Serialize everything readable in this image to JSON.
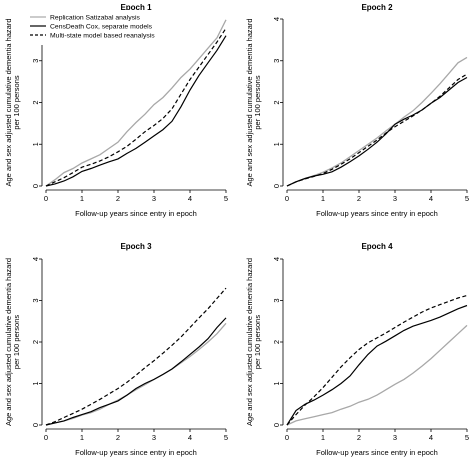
{
  "chart_data": [
    {
      "type": "line",
      "title": "Epoch 1",
      "xlabel": "Follow-up years since entry in epoch",
      "ylabel": [
        "Age and sex adjusted cumulative dementia hazard",
        "per 100 persons"
      ],
      "xlim": [
        0,
        5
      ],
      "ylim": [
        0,
        4
      ],
      "xticks": [
        0,
        1,
        2,
        3,
        4,
        5
      ],
      "yticks": [
        0,
        1,
        2,
        3,
        4
      ],
      "grid": false,
      "legend": "top-left",
      "series": [
        {
          "name": "Replication Satizabal analysis",
          "color": "#a8a8a8",
          "dash": "solid",
          "x": [
            0,
            0.25,
            0.5,
            0.75,
            1.0,
            1.25,
            1.5,
            1.75,
            2.0,
            2.25,
            2.5,
            2.75,
            3.0,
            3.25,
            3.5,
            3.75,
            4.0,
            4.25,
            4.5,
            4.75,
            5.0
          ],
          "y": [
            0,
            0.15,
            0.32,
            0.42,
            0.55,
            0.65,
            0.75,
            0.9,
            1.05,
            1.3,
            1.52,
            1.72,
            1.95,
            2.12,
            2.35,
            2.6,
            2.8,
            3.05,
            3.3,
            3.55,
            3.98
          ]
        },
        {
          "name": "CensDeath Cox, separate models",
          "color": "#000000",
          "dash": "solid",
          "x": [
            0,
            0.25,
            0.5,
            0.75,
            1.0,
            1.25,
            1.5,
            1.75,
            2.0,
            2.25,
            2.5,
            2.75,
            3.0,
            3.25,
            3.5,
            3.75,
            4.0,
            4.25,
            4.5,
            4.75,
            5.0
          ],
          "y": [
            0,
            0.05,
            0.12,
            0.22,
            0.35,
            0.42,
            0.5,
            0.58,
            0.65,
            0.78,
            0.9,
            1.05,
            1.2,
            1.35,
            1.55,
            1.9,
            2.3,
            2.65,
            2.95,
            3.25,
            3.6
          ]
        },
        {
          "name": "Multi-state model based reanalysis",
          "color": "#000000",
          "dash": "dashed",
          "x": [
            0,
            0.25,
            0.5,
            0.75,
            1.0,
            1.25,
            1.5,
            1.75,
            2.0,
            2.25,
            2.5,
            2.75,
            3.0,
            3.25,
            3.5,
            3.75,
            4.0,
            4.25,
            4.5,
            4.75,
            5.0
          ],
          "y": [
            0,
            0.1,
            0.2,
            0.32,
            0.45,
            0.52,
            0.6,
            0.7,
            0.82,
            0.95,
            1.12,
            1.3,
            1.45,
            1.62,
            1.85,
            2.2,
            2.55,
            2.85,
            3.15,
            3.45,
            3.78
          ]
        }
      ]
    },
    {
      "type": "line",
      "title": "Epoch 2",
      "xlabel": "Follow-up years since entry in epoch",
      "ylabel": [
        "Age and sex adjusted cumulative dementia hazard",
        "per 100 persons"
      ],
      "xlim": [
        0,
        5
      ],
      "ylim": [
        0,
        4
      ],
      "xticks": [
        0,
        1,
        2,
        3,
        4,
        5
      ],
      "yticks": [
        0,
        1,
        2,
        3,
        4
      ],
      "grid": false,
      "series": [
        {
          "name": "Replication Satizabal analysis",
          "color": "#a8a8a8",
          "dash": "solid",
          "x": [
            0,
            0.25,
            0.5,
            0.75,
            1.0,
            1.25,
            1.5,
            1.75,
            2.0,
            2.25,
            2.5,
            2.75,
            3.0,
            3.25,
            3.5,
            3.75,
            4.0,
            4.25,
            4.5,
            4.75,
            5.0
          ],
          "y": [
            0,
            0.1,
            0.18,
            0.25,
            0.33,
            0.43,
            0.55,
            0.7,
            0.85,
            1.0,
            1.15,
            1.32,
            1.48,
            1.65,
            1.8,
            2.0,
            2.22,
            2.45,
            2.7,
            2.95,
            3.08
          ]
        },
        {
          "name": "CensDeath Cox, separate models",
          "color": "#000000",
          "dash": "solid",
          "x": [
            0,
            0.25,
            0.5,
            0.75,
            1.0,
            1.25,
            1.5,
            1.75,
            2.0,
            2.25,
            2.5,
            2.75,
            3.0,
            3.25,
            3.5,
            3.75,
            4.0,
            4.25,
            4.5,
            4.75,
            5.0
          ],
          "y": [
            0,
            0.1,
            0.18,
            0.24,
            0.28,
            0.34,
            0.45,
            0.58,
            0.72,
            0.88,
            1.05,
            1.25,
            1.48,
            1.6,
            1.7,
            1.82,
            1.98,
            2.12,
            2.3,
            2.48,
            2.6
          ]
        },
        {
          "name": "Multi-state model based reanalysis",
          "color": "#000000",
          "dash": "dashed",
          "x": [
            0,
            0.25,
            0.5,
            0.75,
            1.0,
            1.25,
            1.5,
            1.75,
            2.0,
            2.25,
            2.5,
            2.75,
            3.0,
            3.25,
            3.5,
            3.75,
            4.0,
            4.25,
            4.5,
            4.75,
            5.0
          ],
          "y": [
            0,
            0.1,
            0.17,
            0.23,
            0.3,
            0.4,
            0.52,
            0.65,
            0.8,
            0.95,
            1.1,
            1.27,
            1.42,
            1.55,
            1.68,
            1.82,
            1.98,
            2.15,
            2.35,
            2.55,
            2.68
          ]
        }
      ]
    },
    {
      "type": "line",
      "title": "Epoch 3",
      "xlabel": "Follow-up years since entry in epoch",
      "ylabel": [
        "Age and sex adjusted cumulative dementia hazard",
        "per 100 persons"
      ],
      "xlim": [
        0,
        5
      ],
      "ylim": [
        0,
        4
      ],
      "xticks": [
        0,
        1,
        2,
        3,
        4,
        5
      ],
      "yticks": [
        0,
        1,
        2,
        3,
        4
      ],
      "grid": false,
      "series": [
        {
          "name": "Replication Satizabal analysis",
          "color": "#a8a8a8",
          "dash": "solid",
          "x": [
            0,
            0.25,
            0.5,
            0.75,
            1.0,
            1.25,
            1.5,
            1.75,
            2.0,
            2.25,
            2.5,
            2.75,
            3.0,
            3.25,
            3.5,
            3.75,
            4.0,
            4.25,
            4.5,
            4.75,
            5.0
          ],
          "y": [
            0,
            0.05,
            0.1,
            0.16,
            0.24,
            0.3,
            0.38,
            0.5,
            0.6,
            0.72,
            0.85,
            0.97,
            1.1,
            1.22,
            1.35,
            1.5,
            1.65,
            1.82,
            2.0,
            2.2,
            2.45
          ]
        },
        {
          "name": "CensDeath Cox, separate models",
          "color": "#000000",
          "dash": "solid",
          "x": [
            0,
            0.25,
            0.5,
            0.75,
            1.0,
            1.25,
            1.5,
            1.75,
            2.0,
            2.25,
            2.5,
            2.75,
            3.0,
            3.25,
            3.5,
            3.75,
            4.0,
            4.25,
            4.5,
            4.75,
            5.0
          ],
          "y": [
            0,
            0.05,
            0.1,
            0.18,
            0.25,
            0.32,
            0.42,
            0.5,
            0.58,
            0.72,
            0.88,
            1.0,
            1.1,
            1.22,
            1.35,
            1.52,
            1.7,
            1.88,
            2.08,
            2.35,
            2.58
          ]
        },
        {
          "name": "Multi-state model based reanalysis",
          "color": "#000000",
          "dash": "dashed",
          "x": [
            0,
            0.25,
            0.5,
            0.75,
            1.0,
            1.25,
            1.5,
            1.75,
            2.0,
            2.25,
            2.5,
            2.75,
            3.0,
            3.25,
            3.5,
            3.75,
            4.0,
            4.25,
            4.5,
            4.75,
            5.0
          ],
          "y": [
            0,
            0.08,
            0.18,
            0.28,
            0.38,
            0.5,
            0.62,
            0.75,
            0.88,
            1.03,
            1.2,
            1.38,
            1.55,
            1.73,
            1.92,
            2.12,
            2.35,
            2.58,
            2.8,
            3.05,
            3.3
          ]
        }
      ]
    },
    {
      "type": "line",
      "title": "Epoch 4",
      "xlabel": "Follow-up years since entry in epoch",
      "ylabel": [
        "Age and sex adjusted cumulative dementia hazard",
        "per 100 persons"
      ],
      "xlim": [
        0,
        5
      ],
      "ylim": [
        0,
        4
      ],
      "xticks": [
        0,
        1,
        2,
        3,
        4,
        5
      ],
      "yticks": [
        0,
        1,
        2,
        3,
        4
      ],
      "grid": false,
      "series": [
        {
          "name": "Replication Satizabal analysis",
          "color": "#a8a8a8",
          "dash": "solid",
          "x": [
            0,
            0.25,
            0.5,
            0.75,
            1.0,
            1.25,
            1.5,
            1.75,
            2.0,
            2.25,
            2.5,
            2.75,
            3.0,
            3.25,
            3.5,
            3.75,
            4.0,
            4.25,
            4.5,
            4.75,
            5.0
          ],
          "y": [
            0,
            0.1,
            0.15,
            0.2,
            0.25,
            0.3,
            0.38,
            0.45,
            0.55,
            0.62,
            0.72,
            0.85,
            0.98,
            1.1,
            1.25,
            1.42,
            1.6,
            1.8,
            2.0,
            2.2,
            2.4
          ]
        },
        {
          "name": "CensDeath Cox, separate models",
          "color": "#000000",
          "dash": "solid",
          "x": [
            0,
            0.25,
            0.5,
            0.75,
            1.0,
            1.25,
            1.5,
            1.75,
            2.0,
            2.25,
            2.5,
            2.75,
            3.0,
            3.25,
            3.5,
            3.75,
            4.0,
            4.25,
            4.5,
            4.75,
            5.0
          ],
          "y": [
            0,
            0.35,
            0.5,
            0.6,
            0.72,
            0.85,
            1.0,
            1.18,
            1.45,
            1.7,
            1.9,
            2.02,
            2.15,
            2.28,
            2.38,
            2.45,
            2.52,
            2.6,
            2.7,
            2.8,
            2.88
          ]
        },
        {
          "name": "Multi-state model based reanalysis",
          "color": "#000000",
          "dash": "dashed",
          "x": [
            0,
            0.25,
            0.5,
            0.75,
            1.0,
            1.25,
            1.5,
            1.75,
            2.0,
            2.25,
            2.5,
            2.75,
            3.0,
            3.25,
            3.5,
            3.75,
            4.0,
            4.25,
            4.5,
            4.75,
            5.0
          ],
          "y": [
            0,
            0.25,
            0.48,
            0.68,
            0.9,
            1.15,
            1.4,
            1.62,
            1.82,
            1.98,
            2.1,
            2.22,
            2.35,
            2.48,
            2.6,
            2.72,
            2.82,
            2.9,
            2.98,
            3.06,
            3.12
          ]
        }
      ]
    }
  ]
}
